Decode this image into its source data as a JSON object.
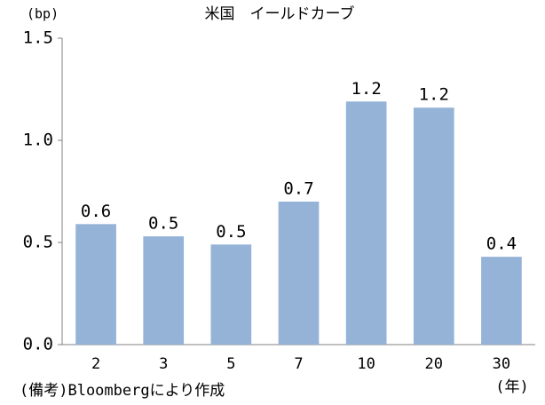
{
  "chart_data": {
    "type": "bar",
    "title": "米国　イールドカーブ",
    "y_label": "(bp)",
    "x_label": "(年)",
    "note": "(備考)Bloombergにより作成",
    "categories": [
      "2",
      "3",
      "5",
      "7",
      "10",
      "20",
      "30"
    ],
    "values": [
      0.59,
      0.53,
      0.49,
      0.7,
      1.19,
      1.16,
      0.43
    ],
    "value_labels": [
      "0.6",
      "0.5",
      "0.5",
      "0.7",
      "1.2",
      "1.2",
      "0.4"
    ],
    "color": "#95b3d7",
    "ylim": [
      0,
      1.5
    ],
    "yticks": [
      {
        "value": 0,
        "label": "0.0"
      },
      0.5,
      {
        "value": 1,
        "label": "1.0"
      },
      {
        "value": 1.5,
        "label": "1.5"
      }
    ],
    "grid": false
  }
}
